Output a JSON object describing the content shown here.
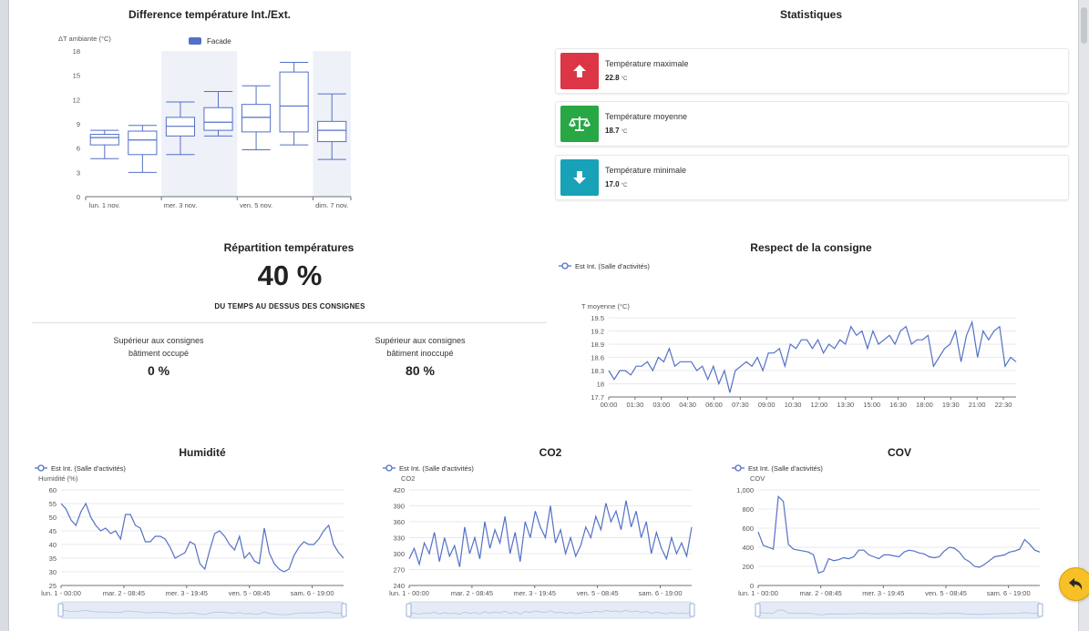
{
  "diff_chart": {
    "title": "Difference température Int./Ext.",
    "ylabel": "ΔT ambiante (°C)",
    "legend": "Facade",
    "y_ticks": [
      "18",
      "15",
      "12",
      "9",
      "6",
      "3",
      "0"
    ],
    "x_ticks": [
      "lun. 1 nov.",
      "mer. 3 nov.",
      "ven. 5 nov.",
      "dim. 7 nov."
    ],
    "accent": "#5470c6"
  },
  "chart_data": [
    {
      "type": "boxplot",
      "title": "Difference température Int./Ext.",
      "ylabel": "ΔT ambiante (°C)",
      "ylim": [
        0,
        18
      ],
      "series": [
        {
          "name": "Facade",
          "boxes": [
            {
              "min": 4.7,
              "q1": 6.4,
              "median": 7.3,
              "q3": 7.7,
              "max": 8.2
            },
            {
              "min": 3.0,
              "q1": 5.2,
              "median": 7.0,
              "q3": 8.1,
              "max": 8.8
            },
            {
              "min": 5.2,
              "q1": 7.5,
              "median": 8.7,
              "q3": 9.8,
              "max": 11.7
            },
            {
              "min": 7.5,
              "q1": 8.2,
              "median": 9.2,
              "q3": 11.0,
              "max": 13.0
            },
            {
              "min": 5.8,
              "q1": 8.0,
              "median": 9.8,
              "q3": 11.4,
              "max": 13.7
            },
            {
              "min": 6.4,
              "q1": 8.0,
              "median": 11.2,
              "q3": 15.4,
              "max": 16.6
            },
            {
              "min": 4.6,
              "q1": 6.8,
              "median": 8.2,
              "q3": 9.3,
              "max": 12.7
            }
          ]
        }
      ]
    },
    {
      "type": "line",
      "title": "Respect de la consigne",
      "ylabel": "T moyenne (°C)",
      "ylim": [
        17.7,
        19.5
      ],
      "series": [
        {
          "name": "Est Int. (Salle d'activités)",
          "values": [
            18.3,
            18.1,
            18.3,
            18.3,
            18.2,
            18.4,
            18.4,
            18.5,
            18.3,
            18.6,
            18.5,
            18.8,
            18.4,
            18.5,
            18.5,
            18.5,
            18.3,
            18.4,
            18.1,
            18.4,
            18.0,
            18.3,
            17.8,
            18.3,
            18.4,
            18.5,
            18.4,
            18.6,
            18.3,
            18.7,
            18.7,
            18.8,
            18.4,
            18.9,
            18.8,
            19.0,
            19.0,
            18.8,
            19.0,
            18.7,
            18.9,
            18.8,
            19.0,
            18.9,
            19.3,
            19.1,
            19.2,
            18.8,
            19.2,
            18.9,
            19.0,
            19.1,
            18.9,
            19.2,
            19.3,
            18.9,
            19.0,
            19.0,
            19.1,
            18.4,
            18.6,
            18.8,
            18.9,
            19.2,
            18.5,
            19.1,
            19.4,
            18.6,
            19.2,
            19.0,
            19.2,
            19.3,
            18.4,
            18.6,
            18.5
          ]
        }
      ]
    },
    {
      "type": "line",
      "title": "Humidité",
      "ylabel": "Humidité (%)",
      "ylim": [
        25,
        60
      ],
      "series": [
        {
          "name": "Est Int. (Salle d'activités)",
          "values": [
            55,
            53,
            49,
            47,
            52,
            55,
            50,
            47,
            45,
            46,
            44,
            45,
            42,
            51,
            51,
            47,
            46,
            41,
            41,
            43,
            43,
            42,
            39,
            35,
            36,
            37,
            41,
            40,
            33,
            31,
            38,
            44,
            45,
            43,
            40,
            38,
            43,
            35,
            37,
            34,
            33,
            46,
            37,
            33,
            31,
            30,
            31,
            36,
            39,
            41,
            40,
            40,
            42,
            45,
            47,
            40,
            37,
            35
          ]
        }
      ]
    },
    {
      "type": "line",
      "title": "CO2",
      "ylabel": "CO2",
      "ylim": [
        240,
        420
      ],
      "series": [
        {
          "name": "Est Int. (Salle d'activités)",
          "values": [
            290,
            310,
            280,
            320,
            300,
            340,
            285,
            330,
            295,
            315,
            275,
            350,
            300,
            330,
            290,
            360,
            310,
            345,
            320,
            370,
            300,
            340,
            285,
            360,
            330,
            380,
            350,
            330,
            390,
            320,
            345,
            300,
            330,
            295,
            315,
            350,
            330,
            370,
            345,
            395,
            360,
            380,
            345,
            400,
            350,
            380,
            330,
            360,
            300,
            340,
            310,
            290,
            330,
            300,
            320,
            295,
            350
          ]
        }
      ]
    },
    {
      "type": "line",
      "title": "COV",
      "ylabel": "COV",
      "ylim": [
        0,
        1000
      ],
      "series": [
        {
          "name": "Est Int. (Salle d'activités)",
          "values": [
            560,
            420,
            400,
            380,
            930,
            880,
            430,
            380,
            370,
            360,
            350,
            320,
            130,
            150,
            280,
            260,
            270,
            290,
            280,
            300,
            370,
            370,
            320,
            300,
            280,
            320,
            320,
            310,
            300,
            350,
            370,
            360,
            340,
            330,
            300,
            290,
            300,
            360,
            400,
            390,
            350,
            280,
            250,
            200,
            190,
            220,
            260,
            300,
            310,
            320,
            350,
            360,
            380,
            480,
            430,
            370,
            350
          ]
        }
      ]
    }
  ],
  "stats": {
    "title": "Statistiques",
    "items": [
      {
        "label": "Température maximale",
        "value": "22.8",
        "unit": "°C",
        "color": "#dc3545",
        "icon": "arrow-up-icon"
      },
      {
        "label": "Température moyenne",
        "value": "18.7",
        "unit": "°C",
        "color": "#28a745",
        "icon": "balance-scale-icon"
      },
      {
        "label": "Température minimale",
        "value": "17.0",
        "unit": "°C",
        "color": "#17a2b8",
        "icon": "arrow-down-icon"
      }
    ]
  },
  "repartition": {
    "title": "Répartition températures",
    "big_value": "40 %",
    "subtitle": "DU TEMPS AU DESSUS DES CONSIGNES",
    "occupied_line1": "Supérieur aux consignes",
    "occupied_line2": "bâtiment occupé",
    "occupied_value": "0 %",
    "unoccupied_line1": "Supérieur aux consignes",
    "unoccupied_line2": "bâtiment inoccupé",
    "unoccupied_value": "80 %"
  },
  "consigne_chart": {
    "title": "Respect de la consigne",
    "legend": "Est Int. (Salle d'activités)",
    "ylabel": "T moyenne (°C)",
    "y_ticks": [
      "19.5",
      "19.2",
      "18.9",
      "18.6",
      "18.3",
      "18",
      "17.7"
    ],
    "x_ticks": [
      "00:00",
      "01:30",
      "03:00",
      "04:30",
      "06:00",
      "07:30",
      "09:00",
      "10:30",
      "12:00",
      "13:30",
      "15:00",
      "16:30",
      "18:00",
      "19:30",
      "21:00",
      "22:30"
    ]
  },
  "humidite_chart": {
    "title": "Humidité",
    "legend": "Est Int. (Salle d'activités)",
    "ylabel": "Humidité (%)",
    "y_ticks": [
      "60",
      "55",
      "50",
      "45",
      "40",
      "35",
      "30",
      "25"
    ],
    "x_ticks": [
      "lun. 1 - 00:00",
      "mar. 2 - 08:45",
      "mer. 3 - 19:45",
      "ven. 5 - 08:45",
      "sam. 6 - 19:00"
    ]
  },
  "co2_chart": {
    "title": "CO2",
    "legend": "Est Int. (Salle d'activités)",
    "ylabel": "CO2",
    "y_ticks": [
      "420",
      "390",
      "360",
      "330",
      "300",
      "270",
      "240"
    ],
    "x_ticks": [
      "lun. 1 - 00:00",
      "mar. 2 - 08:45",
      "mer. 3 - 19:45",
      "ven. 5 - 08:45",
      "sam. 6 - 19:00"
    ]
  },
  "cov_chart": {
    "title": "COV",
    "legend": "Est Int. (Salle d'activités)",
    "ylabel": "COV",
    "y_ticks": [
      "1,000",
      "800",
      "600",
      "400",
      "200",
      "0"
    ],
    "x_ticks": [
      "lun. 1 - 00:00",
      "mar. 2 - 08:45",
      "mer. 3 - 19:45",
      "ven. 5 - 08:45",
      "sam. 6 - 19:00"
    ]
  },
  "floating": {
    "icon": "undo-arrow-icon"
  }
}
